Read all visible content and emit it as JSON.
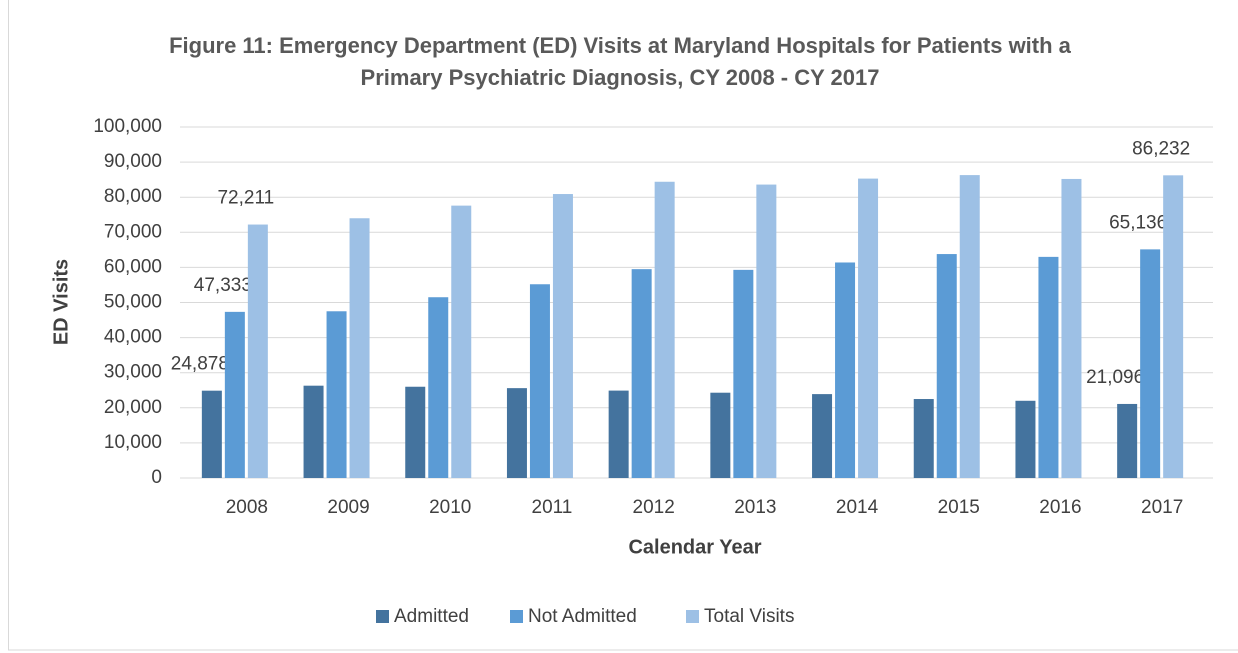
{
  "chart_data": {
    "type": "bar",
    "title": "Figure 11: Emergency Department (ED) Visits at Maryland Hospitals for Patients with a Primary Psychiatric Diagnosis, CY 2008 - CY 2017",
    "x_label": "Calendar Year",
    "y_label": "ED Visits",
    "categories": [
      "2008",
      "2009",
      "2010",
      "2011",
      "2012",
      "2013",
      "2014",
      "2015",
      "2016",
      "2017"
    ],
    "series": [
      {
        "name": "Admitted",
        "color": "#44739e",
        "values": [
          24878,
          26300,
          26000,
          25600,
          24900,
          24300,
          23900,
          22500,
          22000,
          21096
        ],
        "value_labels": [
          "24,878",
          null,
          null,
          null,
          null,
          null,
          null,
          null,
          null,
          "21,096"
        ]
      },
      {
        "name": "Not Admitted",
        "color": "#5b9bd5",
        "values": [
          47333,
          47500,
          51500,
          55200,
          59500,
          59300,
          61400,
          63800,
          63000,
          65136
        ],
        "value_labels": [
          "47,333",
          null,
          null,
          null,
          null,
          null,
          null,
          null,
          null,
          "65,136"
        ]
      },
      {
        "name": "Total Visits",
        "color": "#9dc0e5",
        "values": [
          72211,
          74000,
          77600,
          80900,
          84400,
          83600,
          85300,
          86300,
          85200,
          86232
        ],
        "value_labels": [
          "72,211",
          null,
          null,
          null,
          null,
          null,
          null,
          null,
          null,
          "86,232"
        ]
      }
    ],
    "ylim": [
      0,
      100000
    ],
    "yticks": [
      0,
      {
        "value": 10000,
        "label": "10,000"
      },
      {
        "value": 20000,
        "label": "20,000"
      },
      {
        "value": 30000,
        "label": "30,000"
      },
      {
        "value": 40000,
        "label": "40,000"
      },
      {
        "value": 50000,
        "label": "50,000"
      },
      {
        "value": 60000,
        "label": "60,000"
      },
      {
        "value": 70000,
        "label": "70,000"
      },
      {
        "value": 80000,
        "label": "80,000"
      },
      {
        "value": 90000,
        "label": "90,000"
      },
      {
        "value": 100000,
        "label": "100,000"
      }
    ],
    "grid": true,
    "legend": "bottom"
  }
}
